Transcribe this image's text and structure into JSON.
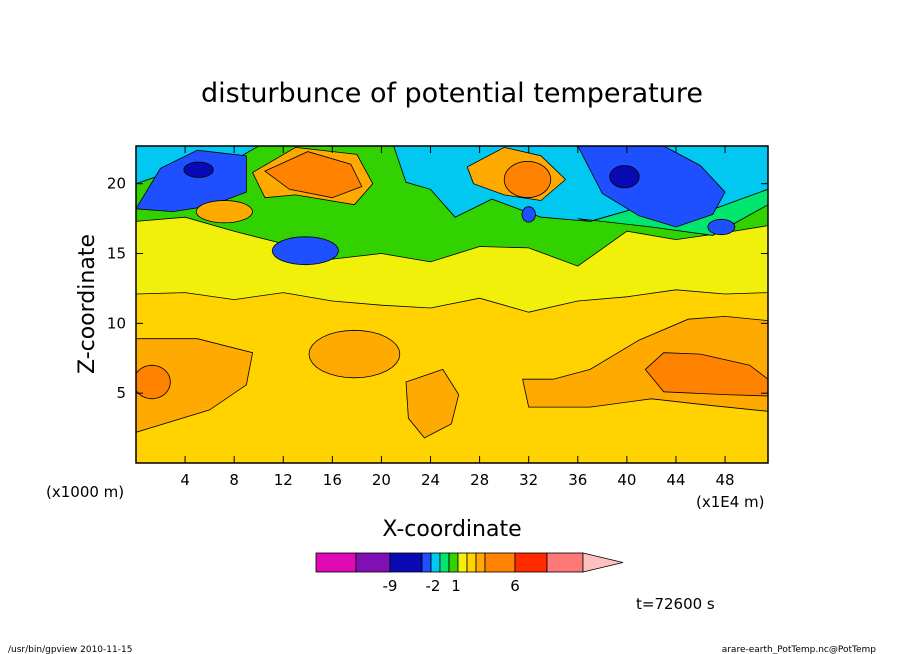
{
  "chart_data": {
    "type": "heatmap",
    "title": "disturbunce of potential temperature",
    "xlabel": "X-coordinate",
    "ylabel": "Z-coordinate",
    "x_unit_note": "(x1E4 m)",
    "y_unit_note": "(x1000 m)",
    "xlim": [
      0,
      51.5
    ],
    "ylim": [
      0,
      22.7
    ],
    "x_ticks": [
      4,
      8,
      12,
      16,
      20,
      24,
      28,
      32,
      36,
      40,
      44,
      48
    ],
    "y_ticks": [
      5,
      10,
      15,
      20
    ],
    "time_label": "t=72600 s",
    "colorbar": {
      "levels": [
        -9,
        -2,
        1,
        6
      ],
      "level_labels": [
        "-9",
        "-2",
        "1",
        "6"
      ],
      "colors": [
        "#e00ab4",
        "#8010b4",
        "#0a0ab4",
        "#1e50ff",
        "#00c8f0",
        "#00e66e",
        "#32d200",
        "#f0f00a",
        "#ffd200",
        "#ffaa00",
        "#ff8200",
        "#ff2a00",
        "#ff7878",
        "#ffc0c0"
      ]
    },
    "bands": [
      {
        "level": "1",
        "color": "#f0f00a"
      },
      {
        "level": "0",
        "color": "#32d200"
      },
      {
        "level": "-1",
        "color": "#00e66e"
      },
      {
        "level": "-2",
        "color": "#00c8f0"
      },
      {
        "level": "-5",
        "color": "#1e50ff"
      },
      {
        "level": "-9",
        "color": "#0a0ab4"
      },
      {
        "level": "2",
        "color": "#ffd200"
      },
      {
        "level": "4",
        "color": "#ffaa00"
      },
      {
        "level": "6",
        "color": "#ff8200"
      }
    ]
  },
  "footer": {
    "left": "/usr/bin/gpview   2010-11-15",
    "right": "arare-earth_PotTemp.nc@PotTemp"
  }
}
